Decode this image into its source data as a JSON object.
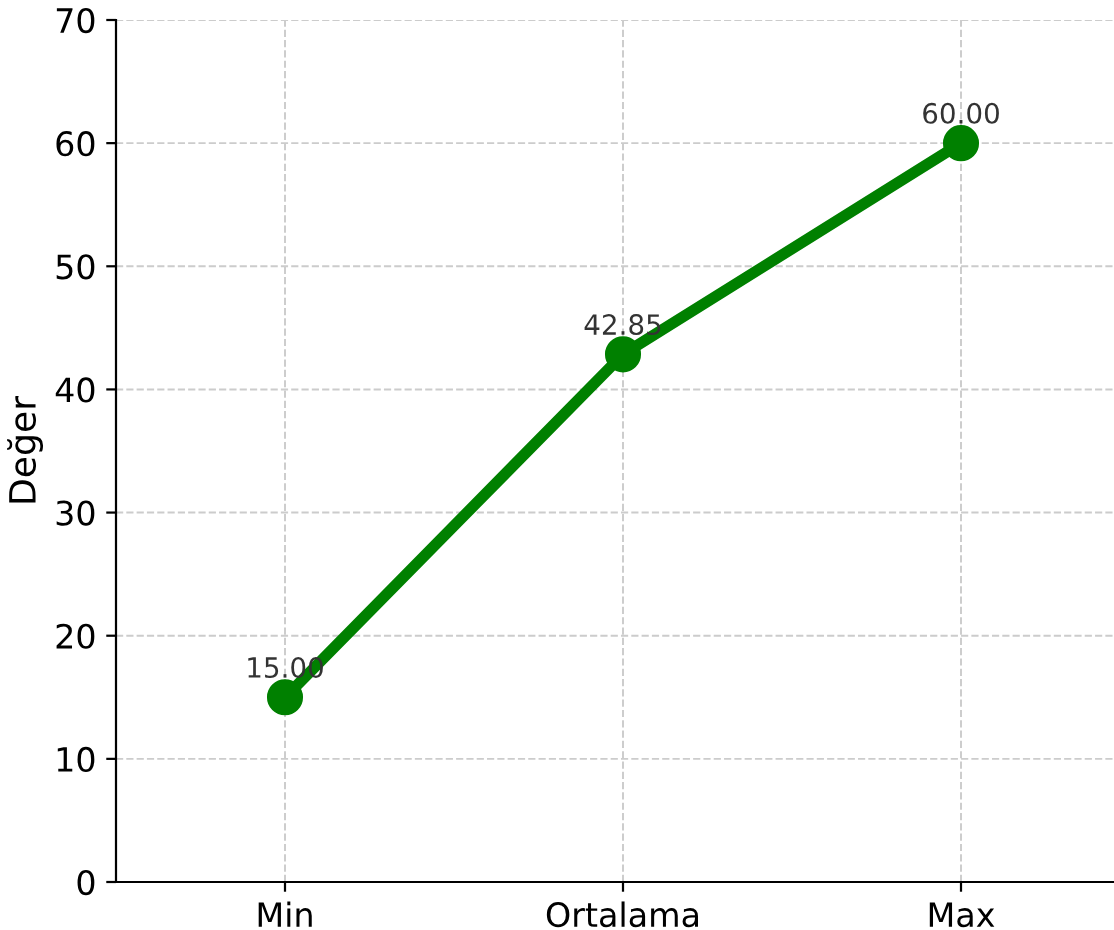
{
  "chart_data": {
    "type": "line",
    "ylabel": "Değer",
    "categories": [
      "Min",
      "Ortalama",
      "Max"
    ],
    "series": [
      {
        "color": "#008000",
        "values": [
          15,
          42.85,
          60
        ],
        "value_labels": [
          "15.00",
          "42.85",
          "60.00"
        ]
      }
    ],
    "ylim": [
      0,
      70
    ],
    "yticks": [
      0,
      10,
      20,
      30,
      40,
      50,
      60,
      70
    ],
    "grid": true,
    "marker": "circle",
    "line_style": "solid"
  }
}
